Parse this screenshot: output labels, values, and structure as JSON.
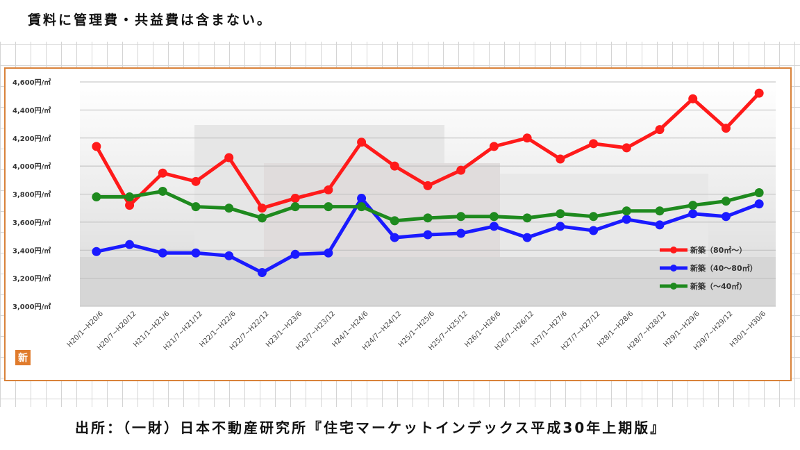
{
  "header": {
    "note": "賃料に管理費・共益費は含まない。"
  },
  "footer": {
    "source": "出所：（一財）日本不動産研究所『住宅マーケットインデックス平成30年上期版』"
  },
  "logo": {
    "char": "新"
  },
  "chart_data": {
    "type": "line",
    "title": "",
    "xlabel": "",
    "ylabel": "",
    "ylim": [
      3000,
      4600
    ],
    "yticks": [
      "4,600円/㎡",
      "4,400円/㎡",
      "4,200円/㎡",
      "4,000円/㎡",
      "3,800円/㎡",
      "3,600円/㎡",
      "3,400円/㎡",
      "3,200円/㎡",
      "3,000円/㎡"
    ],
    "categories": [
      "H20/1~H20/6",
      "H20/7~H20/12",
      "H21/1~H21/6",
      "H21/7~H21/12",
      "H22/1~H22/6",
      "H22/7~H22/12",
      "H23/1~H23/6",
      "H23/7~H23/12",
      "H24/1~H24/6",
      "H24/7~H24/12",
      "H25/1~H25/6",
      "H25/7~H25/12",
      "H26/1~H26/6",
      "H26/7~H26/12",
      "H27/1~H27/6",
      "H27/7~H27/12",
      "H28/1~H28/6",
      "H28/7~H28/12",
      "H29/1~H29/6",
      "H29/7~H29/12",
      "H30/1~H30/6"
    ],
    "legend_position": "right",
    "grid": true,
    "series": [
      {
        "name": "新築（80㎡～）",
        "color": "#ff1a1a",
        "values": [
          4140,
          3720,
          3950,
          3890,
          4060,
          3700,
          3770,
          3830,
          4170,
          4000,
          3860,
          3970,
          4140,
          4200,
          4050,
          4160,
          4130,
          4260,
          4480,
          4270,
          4520
        ]
      },
      {
        "name": "新築（40～80㎡）",
        "color": "#1a1aff",
        "values": [
          3390,
          3440,
          3380,
          3380,
          3360,
          3240,
          3370,
          3380,
          3770,
          3490,
          3510,
          3520,
          3570,
          3490,
          3570,
          3540,
          3620,
          3580,
          3660,
          3640,
          3730
        ]
      },
      {
        "name": "新築（～40㎡）",
        "color": "#1e8a1e",
        "values": [
          3780,
          3780,
          3820,
          3710,
          3700,
          3630,
          3710,
          3710,
          3710,
          3610,
          3630,
          3640,
          3640,
          3630,
          3660,
          3640,
          3680,
          3680,
          3720,
          3750,
          3810
        ]
      }
    ]
  }
}
